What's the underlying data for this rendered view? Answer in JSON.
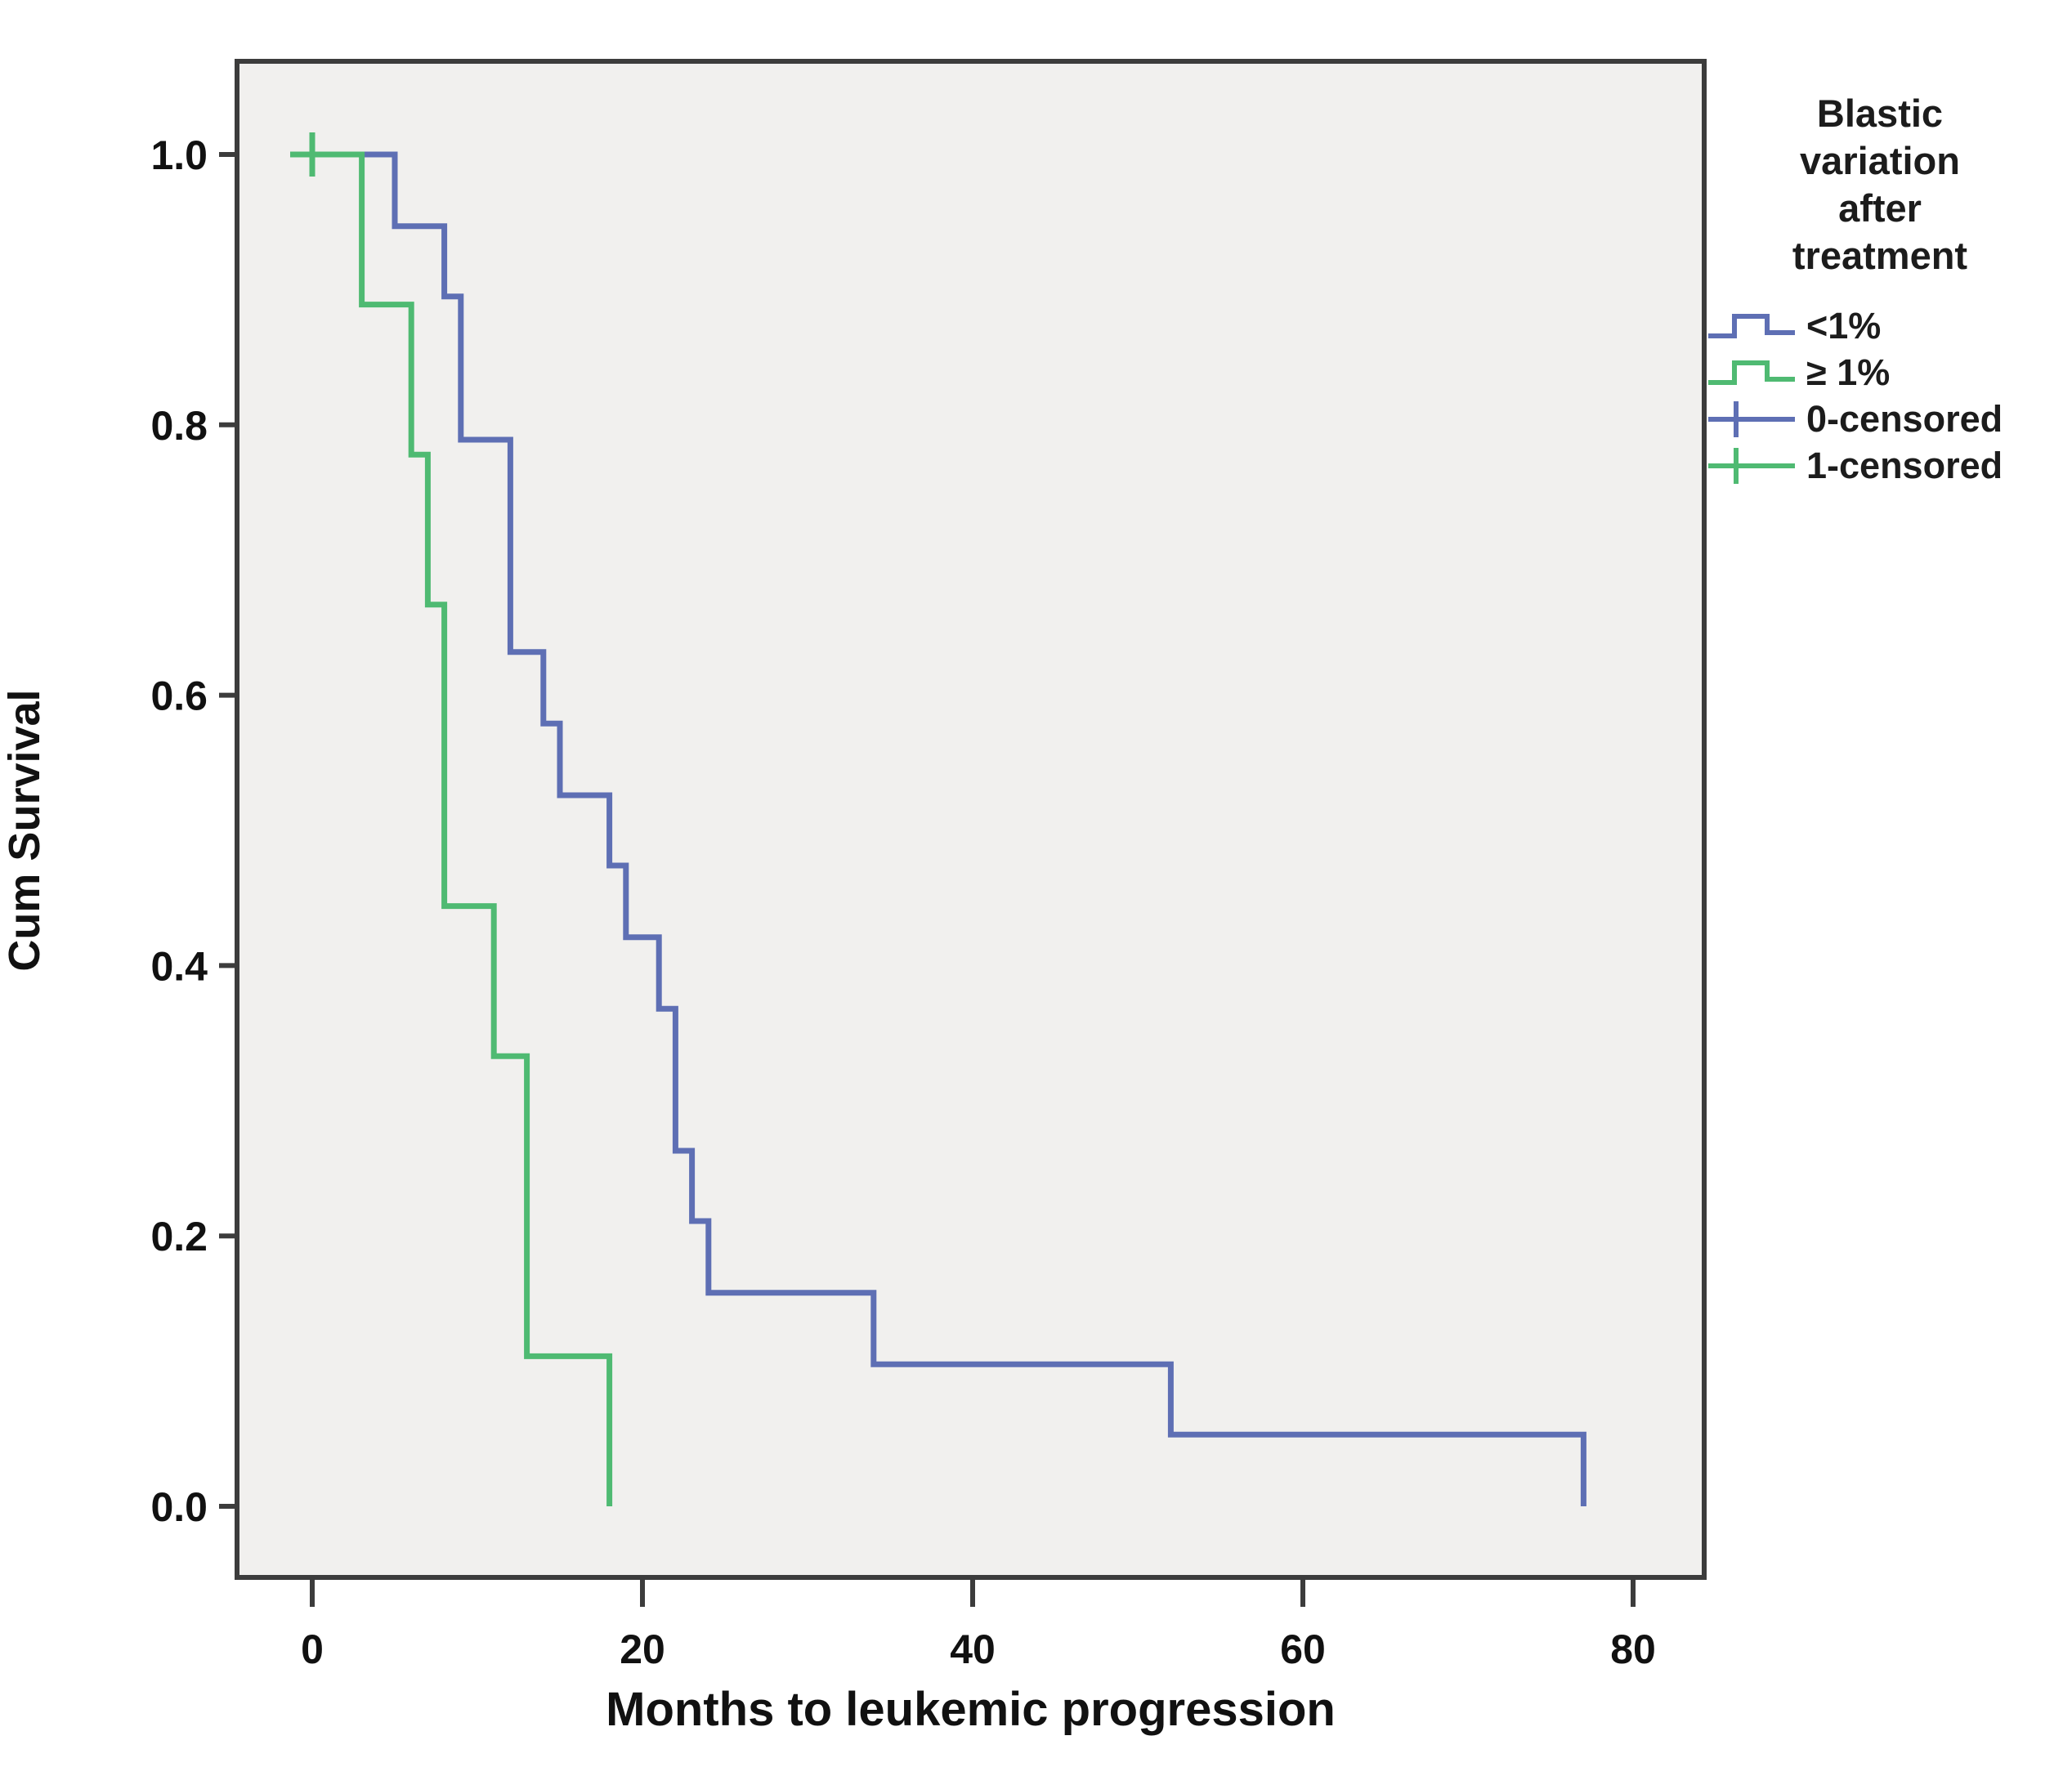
{
  "chart_data": {
    "type": "line",
    "subtype": "kaplan-meier-step",
    "title": "",
    "xlabel": "Months to leukemic progression",
    "ylabel": "Cum Survival",
    "x_ticks": [
      0,
      20,
      40,
      60,
      80
    ],
    "x_tick_labels": [
      "0",
      "20",
      "40",
      "60",
      "80"
    ],
    "y_ticks": [
      0.0,
      0.2,
      0.4,
      0.6,
      0.8,
      1.0
    ],
    "y_tick_labels": [
      "0.0",
      "0.2",
      "0.4",
      "0.6",
      "0.8",
      "1.0"
    ],
    "xlim": [
      -4.6,
      84.3
    ],
    "ylim": [
      -0.053,
      1.069
    ],
    "grid": false,
    "legend_position": "right",
    "plot_bg": "#f1f0ee",
    "frame_color": "#3c3c3c",
    "series": [
      {
        "name": "<1%",
        "color": "#5e6fb4",
        "points": [
          [
            0,
            1.0
          ],
          [
            5,
            1.0
          ],
          [
            5,
            0.947
          ],
          [
            8,
            0.947
          ],
          [
            8,
            0.895
          ],
          [
            9,
            0.895
          ],
          [
            9,
            0.789
          ],
          [
            12,
            0.789
          ],
          [
            12,
            0.632
          ],
          [
            14,
            0.632
          ],
          [
            14,
            0.579
          ],
          [
            15,
            0.579
          ],
          [
            15,
            0.526
          ],
          [
            18,
            0.526
          ],
          [
            18,
            0.474
          ],
          [
            19,
            0.474
          ],
          [
            19,
            0.421
          ],
          [
            21,
            0.421
          ],
          [
            21,
            0.368
          ],
          [
            22,
            0.368
          ],
          [
            22,
            0.263
          ],
          [
            23,
            0.263
          ],
          [
            23,
            0.211
          ],
          [
            24,
            0.211
          ],
          [
            24,
            0.158
          ],
          [
            34,
            0.158
          ],
          [
            34,
            0.105
          ],
          [
            52,
            0.105
          ],
          [
            52,
            0.053
          ],
          [
            77,
            0.053
          ],
          [
            77,
            0.0
          ]
        ],
        "censored": []
      },
      {
        "name": "≥ 1%",
        "color": "#4fba72",
        "points": [
          [
            0,
            1.0
          ],
          [
            3,
            1.0
          ],
          [
            3,
            0.889
          ],
          [
            6,
            0.889
          ],
          [
            6,
            0.778
          ],
          [
            7,
            0.778
          ],
          [
            7,
            0.667
          ],
          [
            8,
            0.667
          ],
          [
            8,
            0.444
          ],
          [
            11,
            0.444
          ],
          [
            11,
            0.333
          ],
          [
            13,
            0.333
          ],
          [
            13,
            0.111
          ],
          [
            18,
            0.111
          ],
          [
            18,
            0.0
          ]
        ],
        "censored": [
          [
            0,
            1.0
          ]
        ]
      }
    ],
    "legend": {
      "title_lines": [
        "Blastic",
        "variation",
        "after",
        "treatment"
      ],
      "entries": [
        {
          "label": "<1%",
          "glyph": "step",
          "color": "#5e6fb4"
        },
        {
          "label": "≥ 1%",
          "glyph": "step",
          "color": "#4fba72"
        },
        {
          "label": "0-censored",
          "glyph": "censor",
          "color": "#5e6fb4"
        },
        {
          "label": "1-censored",
          "glyph": "censor",
          "color": "#4fba72"
        }
      ]
    }
  },
  "colors": {
    "blue_series": "#5e6fb4",
    "green_series": "#4fba72",
    "plot_background": "#f1f0ee",
    "frame": "#3c3c3c",
    "text": "#111111"
  }
}
